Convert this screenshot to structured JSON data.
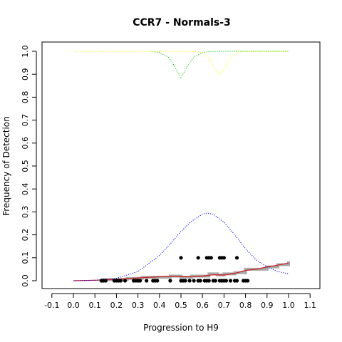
{
  "chart_data": {
    "type": "scatter",
    "title": "CCR7 - Normals-3",
    "xlabel": "Progression to H9",
    "ylabel": "Frequency of Detection",
    "xlim": [
      -0.1,
      1.1
    ],
    "ylim": [
      0.0,
      1.0
    ],
    "x_ticks": [
      "-0.1",
      "0.0",
      "0.1",
      "0.2",
      "0.3",
      "0.4",
      "0.5",
      "0.6",
      "0.7",
      "0.8",
      "0.9",
      "1.0",
      "1.1"
    ],
    "y_ticks": [
      "0.0",
      "0.1",
      "0.2",
      "0.3",
      "0.4",
      "0.5",
      "0.6",
      "0.7",
      "0.8",
      "0.9",
      "1.0"
    ],
    "grid": false,
    "series": [
      {
        "color": "#000000",
        "style": "points",
        "points": [
          [
            0.13,
            0
          ],
          [
            0.14,
            0
          ],
          [
            0.15,
            0
          ],
          [
            0.19,
            0
          ],
          [
            0.2,
            0
          ],
          [
            0.21,
            0
          ],
          [
            0.22,
            0
          ],
          [
            0.24,
            0
          ],
          [
            0.28,
            0
          ],
          [
            0.29,
            0
          ],
          [
            0.3,
            0
          ],
          [
            0.31,
            0
          ],
          [
            0.34,
            0
          ],
          [
            0.37,
            0
          ],
          [
            0.38,
            0
          ],
          [
            0.39,
            0
          ],
          [
            0.45,
            0
          ],
          [
            0.5,
            0
          ],
          [
            0.51,
            0
          ],
          [
            0.52,
            0
          ],
          [
            0.54,
            0
          ],
          [
            0.56,
            0
          ],
          [
            0.58,
            0
          ],
          [
            0.59,
            0
          ],
          [
            0.61,
            0
          ],
          [
            0.62,
            0
          ],
          [
            0.63,
            0
          ],
          [
            0.65,
            0
          ],
          [
            0.66,
            0
          ],
          [
            0.68,
            0
          ],
          [
            0.69,
            0
          ],
          [
            0.7,
            0
          ],
          [
            0.71,
            0
          ],
          [
            0.73,
            0
          ],
          [
            0.75,
            0
          ],
          [
            0.76,
            0
          ],
          [
            0.79,
            0
          ],
          [
            0.8,
            0
          ],
          [
            0.81,
            0
          ],
          [
            0.5,
            0.1
          ],
          [
            0.58,
            0.1
          ],
          [
            0.62,
            0.1
          ],
          [
            0.63,
            0.1
          ],
          [
            0.64,
            0.1
          ],
          [
            0.68,
            0.1
          ],
          [
            0.69,
            0.1
          ],
          [
            0.7,
            0.1
          ],
          [
            0.76,
            0.1
          ]
        ]
      },
      {
        "color": "#a9a9a9",
        "style": "step",
        "points": [
          [
            0.13,
            0.005
          ],
          [
            0.25,
            0.01
          ],
          [
            0.3,
            0.01
          ],
          [
            0.32,
            0.015
          ],
          [
            0.4,
            0.015
          ],
          [
            0.45,
            0.02
          ],
          [
            0.5,
            0.015
          ],
          [
            0.55,
            0.02
          ],
          [
            0.6,
            0.02
          ],
          [
            0.63,
            0.03
          ],
          [
            0.67,
            0.025
          ],
          [
            0.7,
            0.03
          ],
          [
            0.75,
            0.035
          ],
          [
            0.8,
            0.05
          ],
          [
            0.85,
            0.05
          ],
          [
            0.9,
            0.06
          ],
          [
            0.95,
            0.07
          ],
          [
            1.0,
            0.085
          ]
        ]
      },
      {
        "color": "#cc2222",
        "style": "line",
        "points": [
          [
            0.0,
            0.0
          ],
          [
            0.1,
            0.002
          ],
          [
            0.2,
            0.006
          ],
          [
            0.3,
            0.012
          ],
          [
            0.4,
            0.017
          ],
          [
            0.45,
            0.02
          ],
          [
            0.5,
            0.018
          ],
          [
            0.55,
            0.017
          ],
          [
            0.6,
            0.02
          ],
          [
            0.65,
            0.026
          ],
          [
            0.7,
            0.025
          ],
          [
            0.75,
            0.032
          ],
          [
            0.8,
            0.045
          ],
          [
            0.85,
            0.05
          ],
          [
            0.9,
            0.06
          ],
          [
            0.95,
            0.068
          ],
          [
            1.0,
            0.077
          ]
        ]
      },
      {
        "color": "#0000ff",
        "style": "dotted",
        "points": [
          [
            0.0,
            0.0
          ],
          [
            0.1,
            0.002
          ],
          [
            0.2,
            0.01
          ],
          [
            0.3,
            0.04
          ],
          [
            0.4,
            0.11
          ],
          [
            0.45,
            0.16
          ],
          [
            0.5,
            0.215
          ],
          [
            0.55,
            0.26
          ],
          [
            0.6,
            0.29
          ],
          [
            0.62,
            0.295
          ],
          [
            0.65,
            0.29
          ],
          [
            0.7,
            0.255
          ],
          [
            0.75,
            0.2
          ],
          [
            0.8,
            0.14
          ],
          [
            0.85,
            0.09
          ],
          [
            0.9,
            0.06
          ],
          [
            0.95,
            0.04
          ],
          [
            1.0,
            0.03
          ]
        ]
      },
      {
        "color": "#00cc00",
        "style": "dotted",
        "points": [
          [
            0.0,
            1.0
          ],
          [
            0.35,
            1.0
          ],
          [
            0.4,
            0.995
          ],
          [
            0.44,
            0.975
          ],
          [
            0.47,
            0.935
          ],
          [
            0.5,
            0.885
          ],
          [
            0.53,
            0.935
          ],
          [
            0.56,
            0.975
          ],
          [
            0.6,
            0.995
          ],
          [
            0.65,
            1.0
          ],
          [
            1.0,
            1.0
          ]
        ]
      },
      {
        "color": "#ffff00",
        "style": "dotted",
        "points": [
          [
            0.0,
            1.0
          ],
          [
            0.55,
            1.0
          ],
          [
            0.6,
            0.995
          ],
          [
            0.63,
            0.97
          ],
          [
            0.66,
            0.92
          ],
          [
            0.68,
            0.9
          ],
          [
            0.7,
            0.92
          ],
          [
            0.73,
            0.97
          ],
          [
            0.76,
            0.995
          ],
          [
            0.8,
            1.0
          ],
          [
            1.0,
            1.0
          ]
        ]
      }
    ]
  }
}
